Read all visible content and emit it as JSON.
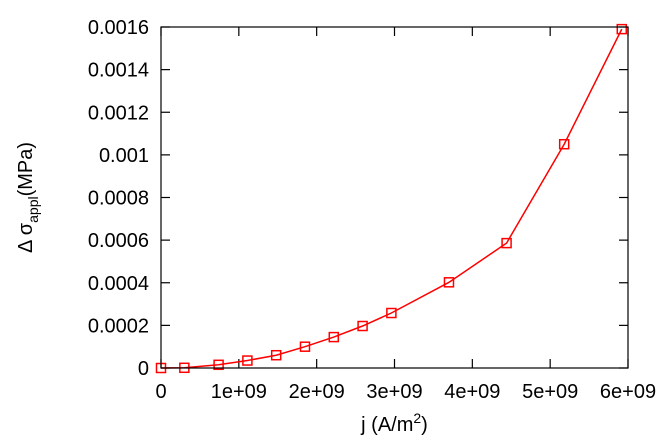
{
  "chart_data": {
    "type": "line",
    "title": "",
    "xlabel": {
      "main": "j (A/m",
      "sup": "2",
      "close": ")"
    },
    "ylabel": {
      "prefix": "Δ σ",
      "sub": "appl",
      "suffix": "(MPa)"
    },
    "xlim": [
      0,
      6000000000
    ],
    "ylim": [
      0,
      0.0016
    ],
    "xticks": [
      {
        "value": 0,
        "label": "0"
      },
      {
        "value": 1000000000,
        "label": "1e+09"
      },
      {
        "value": 2000000000,
        "label": "2e+09"
      },
      {
        "value": 3000000000,
        "label": "3e+09"
      },
      {
        "value": 4000000000,
        "label": "4e+09"
      },
      {
        "value": 5000000000,
        "label": "5e+09"
      },
      {
        "value": 6000000000,
        "label": "6e+09"
      }
    ],
    "yticks": [
      {
        "value": 0,
        "label": "0"
      },
      {
        "value": 0.0002,
        "label": "0.0002"
      },
      {
        "value": 0.0004,
        "label": "0.0004"
      },
      {
        "value": 0.0006,
        "label": "0.0006"
      },
      {
        "value": 0.0008,
        "label": "0.0008"
      },
      {
        "value": 0.001,
        "label": "0.001"
      },
      {
        "value": 0.0012,
        "label": "0.0012"
      },
      {
        "value": 0.0014,
        "label": "0.0014"
      },
      {
        "value": 0.0016,
        "label": "0.0016"
      }
    ],
    "grid": false,
    "legend": "none",
    "series": [
      {
        "color": "#ff0000",
        "marker": "open-square",
        "x": [
          0,
          300000000,
          740000000,
          1110000000,
          1480000000,
          1850000000,
          2220000000,
          2590000000,
          2960000000,
          3700000000,
          4440000000,
          5180000000,
          5920000000
        ],
        "y": [
          0,
          1e-06,
          1.5e-05,
          3.5e-05,
          6e-05,
          0.0001,
          0.000145,
          0.000197,
          0.000258,
          0.000402,
          0.000586,
          0.00105,
          0.00159
        ]
      }
    ]
  }
}
